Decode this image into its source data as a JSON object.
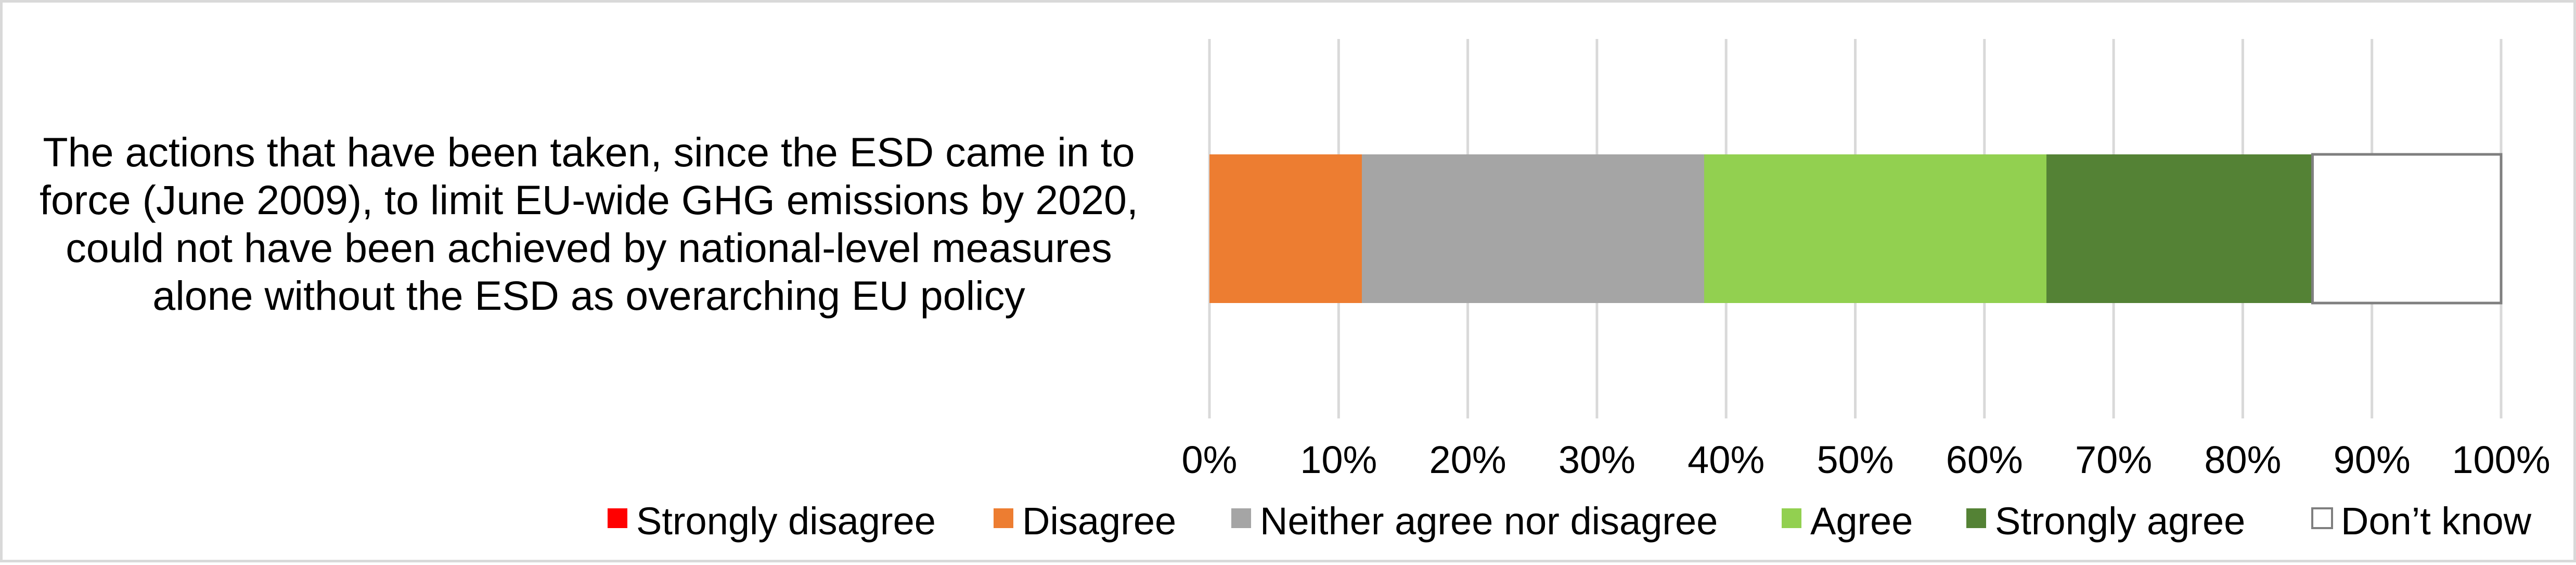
{
  "chart_data": {
    "type": "bar",
    "orientation": "horizontal",
    "stacked": true,
    "categories": [
      "The actions that have been taken, since the ESD came in to force (June 2009), to limit EU-wide GHG emissions by 2020, could not have been achieved by national-level measures alone without the ESD as overarching EU policy"
    ],
    "category_lines": [
      [
        "The actions that have been taken, since the ESD came in to",
        "force (June 2009), to limit EU-wide GHG emissions by 2020,",
        "could not have been achieved by national-level measures",
        "alone without the ESD as overarching EU policy"
      ]
    ],
    "series": [
      {
        "name": "Strongly disagree",
        "color": "#ff0000",
        "values": [
          0
        ]
      },
      {
        "name": "Disagree",
        "color": "#ed7d31",
        "values": [
          11.8
        ]
      },
      {
        "name": "Neither agree nor disagree",
        "color": "#a5a5a5",
        "values": [
          26.5
        ]
      },
      {
        "name": "Agree",
        "color": "#92d050",
        "values": [
          26.5
        ]
      },
      {
        "name": "Strongly agree",
        "color": "#548235",
        "values": [
          20.6
        ]
      },
      {
        "name": "Don’t know",
        "color": "#ffffff",
        "border": "#7f7f7f",
        "values": [
          14.6
        ]
      }
    ],
    "xlim": [
      0,
      100
    ],
    "xticks": [
      "0%",
      "10%",
      "20%",
      "30%",
      "40%",
      "50%",
      "60%",
      "70%",
      "80%",
      "90%",
      "100%"
    ],
    "grid": true,
    "gridline_color": "#d9d9d9",
    "legend_position": "bottom",
    "title": "",
    "xlabel": "",
    "ylabel": ""
  }
}
